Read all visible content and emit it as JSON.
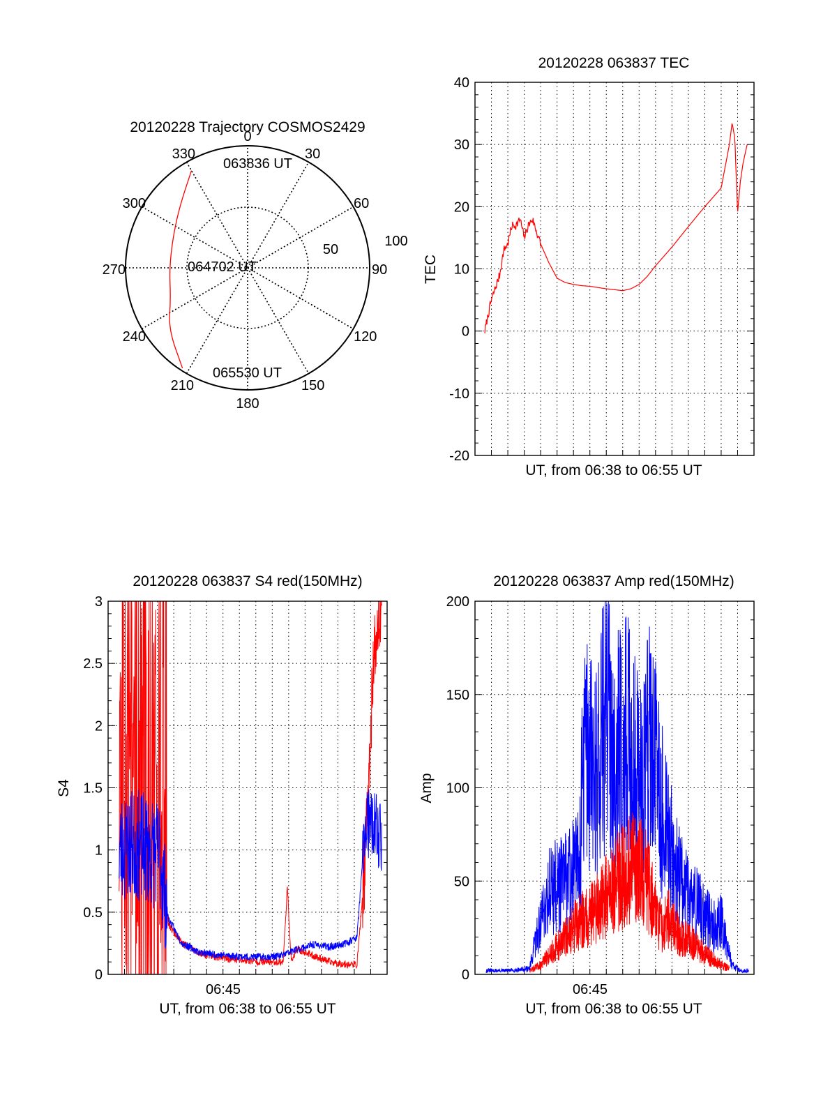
{
  "colors": {
    "red": "#ff0000",
    "blue": "#0000ff",
    "grid": "#000000"
  },
  "chart_data": [
    {
      "id": "polar",
      "type": "polar",
      "title": "20120228 Trajectory COSMOS2429",
      "azimuth_labels": [
        {
          "deg": 0,
          "text": "0"
        },
        {
          "deg": 30,
          "text": "30"
        },
        {
          "deg": 60,
          "text": "60"
        },
        {
          "deg": 90,
          "text": "90"
        },
        {
          "deg": 120,
          "text": "120"
        },
        {
          "deg": 150,
          "text": "150"
        },
        {
          "deg": 180,
          "text": "180"
        },
        {
          "deg": 210,
          "text": "210"
        },
        {
          "deg": 240,
          "text": "240"
        },
        {
          "deg": 270,
          "text": "270"
        },
        {
          "deg": 300,
          "text": "300"
        },
        {
          "deg": 330,
          "text": "330"
        }
      ],
      "radial_labels": [
        "50",
        "100"
      ],
      "track_points": [
        {
          "az": 330,
          "r": 92
        },
        {
          "az": 312,
          "r": 75
        },
        {
          "az": 292,
          "r": 66
        },
        {
          "az": 270,
          "r": 64
        },
        {
          "az": 248,
          "r": 68
        },
        {
          "az": 232,
          "r": 82
        },
        {
          "az": 213,
          "r": 98
        }
      ],
      "time_labels": [
        {
          "text": "063836 UT",
          "az": 330,
          "r": 92
        },
        {
          "text": "064702 UT",
          "az": 270,
          "r": 64
        },
        {
          "text": "065530 UT",
          "az": 213,
          "r": 98
        }
      ]
    },
    {
      "id": "tec",
      "type": "line",
      "title": "20120228 063837 TEC",
      "xlabel": "UT, from 06:38 to 06:55 UT",
      "ylabel": "TEC",
      "x_range": [
        "06:38",
        "06:55"
      ],
      "ylim": [
        -20,
        40
      ],
      "yticks": [
        "-20",
        "-10",
        "0",
        "10",
        "20",
        "30",
        "40"
      ],
      "grid": true,
      "series": [
        {
          "color": "red",
          "x": [
            "06:38:36",
            "06:38:45",
            "06:39:00",
            "06:39:15",
            "06:39:30",
            "06:39:45",
            "06:40:00",
            "06:40:15",
            "06:40:30",
            "06:40:45",
            "06:41:00",
            "06:41:15",
            "06:41:30",
            "06:41:45",
            "06:42:00",
            "06:42:30",
            "06:43:00",
            "06:43:30",
            "06:44:00",
            "06:44:30",
            "06:45:00",
            "06:46:00",
            "06:47:00",
            "06:47:30",
            "06:48:00",
            "06:48:30",
            "06:49:00",
            "06:50:00",
            "06:51:00",
            "06:52:00",
            "06:53:00",
            "06:53:30",
            "06:53:40",
            "06:53:50",
            "06:54:00",
            "06:54:10",
            "06:54:20",
            "06:54:35"
          ],
          "y": [
            0,
            2,
            5,
            7,
            9,
            13,
            14,
            17,
            17,
            18,
            15,
            17,
            18,
            16,
            14,
            11,
            8.5,
            7.8,
            7.5,
            7.3,
            7.2,
            6.8,
            6.5,
            6.8,
            7.5,
            8.8,
            10.5,
            13.5,
            16.8,
            20,
            23,
            30,
            33.5,
            31,
            19,
            24,
            27,
            30
          ]
        }
      ]
    },
    {
      "id": "s4",
      "type": "line",
      "title": "20120228 063837 S4 red(150MHz)",
      "xlabel": "UT, from 06:38 to 06:55 UT",
      "ylabel": "S4",
      "x_range": [
        "06:38",
        "06:55"
      ],
      "xticks": [
        "06:45"
      ],
      "ylim": [
        0,
        3
      ],
      "yticks": [
        "0",
        "0.5",
        "1",
        "1.5",
        "2",
        "2.5",
        "3"
      ],
      "grid": true,
      "series": [
        {
          "color": "red",
          "x": [
            "06:38:40",
            "06:39:30",
            "06:41:10",
            "06:41:40",
            "06:42:30",
            "06:43:30",
            "06:44:30",
            "06:45:30",
            "06:46:30",
            "06:47:30",
            "06:48:40",
            "06:48:55",
            "06:49:10",
            "06:49:30",
            "06:50:30",
            "06:51:30",
            "06:52:30",
            "06:53:10",
            "06:53:40",
            "06:54:10",
            "06:54:40"
          ],
          "y": [
            1.5,
            1.6,
            1.4,
            0.4,
            0.25,
            0.17,
            0.14,
            0.12,
            0.11,
            0.1,
            0.1,
            0.7,
            0.1,
            0.2,
            0.15,
            0.1,
            0.08,
            0.08,
            0.9,
            2.5,
            3.0
          ]
        },
        {
          "color": "blue",
          "x": [
            "06:38:40",
            "06:39:30",
            "06:40:30",
            "06:41:10",
            "06:41:40",
            "06:42:30",
            "06:43:30",
            "06:44:30",
            "06:45:30",
            "06:46:30",
            "06:47:30",
            "06:48:30",
            "06:49:30",
            "06:50:30",
            "06:51:30",
            "06:52:30",
            "06:53:10",
            "06:53:40",
            "06:54:10",
            "06:54:40"
          ],
          "y": [
            1.0,
            1.05,
            1.0,
            0.95,
            0.45,
            0.25,
            0.18,
            0.16,
            0.15,
            0.14,
            0.14,
            0.15,
            0.2,
            0.24,
            0.22,
            0.25,
            0.3,
            1.2,
            1.2,
            1.1
          ]
        }
      ]
    },
    {
      "id": "amp",
      "type": "line",
      "title": "20120228 063837 Amp red(150MHz)",
      "xlabel": "UT, from 06:38 to 06:55 UT",
      "ylabel": "Amp",
      "x_range": [
        "06:38",
        "06:55"
      ],
      "xticks": [
        "06:45"
      ],
      "ylim": [
        0,
        200
      ],
      "yticks": [
        "0",
        "50",
        "100",
        "150",
        "200"
      ],
      "grid": true,
      "series": [
        {
          "color": "blue",
          "x": [
            "06:38:40",
            "06:40:00",
            "06:41:20",
            "06:41:45",
            "06:42:30",
            "06:43:30",
            "06:44:20",
            "06:44:40",
            "06:45:20",
            "06:46:00",
            "06:46:40",
            "06:47:20",
            "06:48:00",
            "06:48:40",
            "06:49:20",
            "06:49:50",
            "06:50:30",
            "06:51:10",
            "06:51:50",
            "06:52:30",
            "06:53:00",
            "06:53:40",
            "06:54:10",
            "06:54:40"
          ],
          "y": [
            2,
            2,
            3,
            20,
            45,
            50,
            60,
            120,
            110,
            140,
            120,
            125,
            105,
            130,
            90,
            70,
            50,
            40,
            35,
            25,
            30,
            5,
            2,
            2
          ]
        },
        {
          "color": "red",
          "x": [
            "06:41:20",
            "06:42:00",
            "06:42:40",
            "06:43:20",
            "06:44:00",
            "06:44:40",
            "06:45:20",
            "06:46:00",
            "06:46:40",
            "06:47:20",
            "06:48:00",
            "06:48:40",
            "06:49:20",
            "06:49:50",
            "06:50:30",
            "06:51:10",
            "06:51:50",
            "06:52:30",
            "06:53:00",
            "06:53:30"
          ],
          "y": [
            2,
            5,
            12,
            18,
            25,
            30,
            35,
            42,
            50,
            55,
            58,
            45,
            25,
            30,
            20,
            18,
            12,
            8,
            5,
            3
          ]
        }
      ]
    }
  ]
}
